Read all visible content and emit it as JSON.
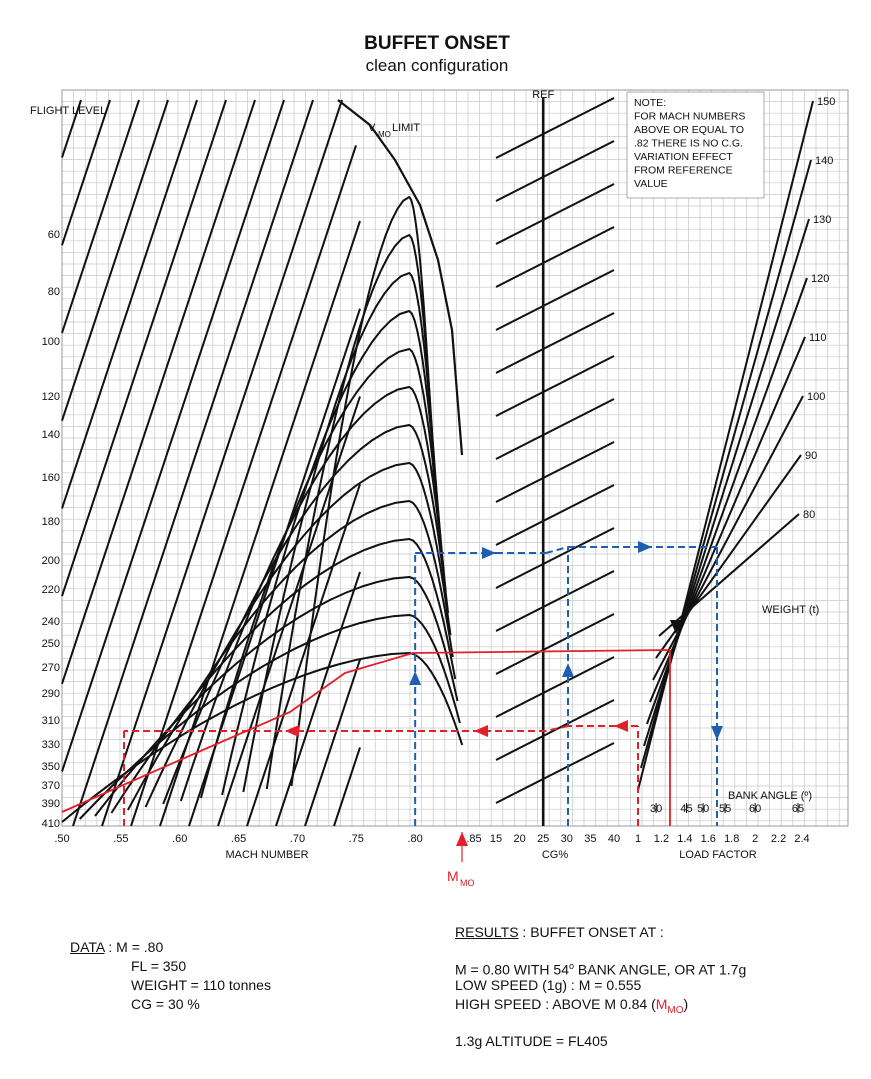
{
  "title": "BUFFET ONSET",
  "subtitle": "clean configuration",
  "chart_data": {
    "type": "line",
    "panels": [
      "mach",
      "cg",
      "load-factor"
    ],
    "mach_axis": {
      "label": "MACH NUMBER",
      "ticks": [
        ".50",
        ".55",
        ".60",
        ".65",
        ".70",
        ".75",
        ".80",
        ".85"
      ],
      "range": [
        0.5,
        0.85
      ]
    },
    "flight_level_axis": {
      "label": "FLIGHT LEVEL",
      "ticks": [
        "60",
        "80",
        "100",
        "120",
        "140",
        "160",
        "180",
        "200",
        "220",
        "240",
        "250",
        "270",
        "290",
        "310",
        "330",
        "350",
        "370",
        "390",
        "410"
      ]
    },
    "vmo_label": "V",
    "vmo_sub": "MO",
    "vmo_rest": " LIMIT",
    "cg_axis": {
      "label": "CG%",
      "ticks": [
        "15",
        "20",
        "25",
        "30",
        "35",
        "40"
      ],
      "ref_label": "REF",
      "ref_value": 25
    },
    "note": [
      "NOTE:",
      "FOR MACH NUMBERS",
      "ABOVE OR EQUAL TO",
      ".82 THERE IS NO C.G.",
      "VARIATION EFFECT",
      "FROM REFERENCE",
      "VALUE"
    ],
    "load_factor_axis": {
      "label": "LOAD  FACTOR",
      "ticks": [
        "1",
        "1.2",
        "1.4",
        "1.6",
        "1.8",
        "2",
        "2.2",
        "2.4"
      ],
      "range": [
        1.0,
        2.4
      ]
    },
    "bank_angle": {
      "label": "BANK  ANGLE  (º)",
      "ticks": [
        "30",
        "45",
        "50",
        "55",
        "60",
        "65"
      ],
      "values": [
        30,
        45,
        50,
        55,
        60,
        65
      ]
    },
    "weight_label": "WEIGHT  (t)",
    "weights": [
      "150",
      "140",
      "130",
      "120",
      "110",
      "100",
      "90",
      "80"
    ],
    "mmo_label": "M",
    "mmo_sub": "MO",
    "buffet_curves": [
      {
        "low": 0.5,
        "high": 0.84,
        "peak": 0.795
      },
      {
        "low": 0.515,
        "high": 0.838,
        "peak": 0.795
      },
      {
        "low": 0.528,
        "high": 0.836,
        "peak": 0.795
      },
      {
        "low": 0.542,
        "high": 0.834,
        "peak": 0.795
      },
      {
        "low": 0.556,
        "high": 0.832,
        "peak": 0.795
      },
      {
        "low": 0.571,
        "high": 0.83,
        "peak": 0.795
      },
      {
        "low": 0.586,
        "high": 0.828,
        "peak": 0.795
      },
      {
        "low": 0.601,
        "high": 0.826,
        "peak": 0.795
      },
      {
        "low": 0.618,
        "high": 0.824,
        "peak": 0.795
      },
      {
        "low": 0.636,
        "high": 0.822,
        "peak": 0.795
      },
      {
        "low": 0.654,
        "high": 0.82,
        "peak": 0.795
      },
      {
        "low": 0.674,
        "high": 0.818,
        "peak": 0.795
      },
      {
        "low": 0.695,
        "high": 0.816,
        "peak": 0.795
      }
    ],
    "examples": [
      {
        "name": "blue",
        "mach": 0.8,
        "flight_level": 350,
        "weight": 110,
        "cg": 30,
        "load_factor": 1.7,
        "bank_angle": 54
      },
      {
        "name": "red",
        "flight_level": 405,
        "load_factor": 1.3,
        "mach_low": 0.555,
        "mach_high": 0.84
      }
    ]
  },
  "data": {
    "heading": "DATA",
    "sep": " : ",
    "lines": [
      "M = .80",
      "FL = 350",
      "WEIGHT = 110 tonnes",
      "CG = 30 %"
    ]
  },
  "results": {
    "heading": "RESULTS",
    "rest": " : BUFFET  ONSET  AT :",
    "line1": "M = 0.80  WITH  54",
    "line1_deg": "o",
    "line1_rest": "  BANK  ANGLE,  OR  AT  1.7g",
    "line2": "LOW  SPEED  (1g) : M = 0.555",
    "line3": "HIGH  SPEED : ABOVE  M 0.84  (",
    "line3_m": "M",
    "line3_sub": "MO",
    "line3_close": ")",
    "line4": "1.3g  ALTITUDE = FL405"
  },
  "colors": {
    "red": "#e0202a",
    "blue": "#1f5fb0",
    "grid": "#c8c8c8",
    "curve": "#111111"
  }
}
